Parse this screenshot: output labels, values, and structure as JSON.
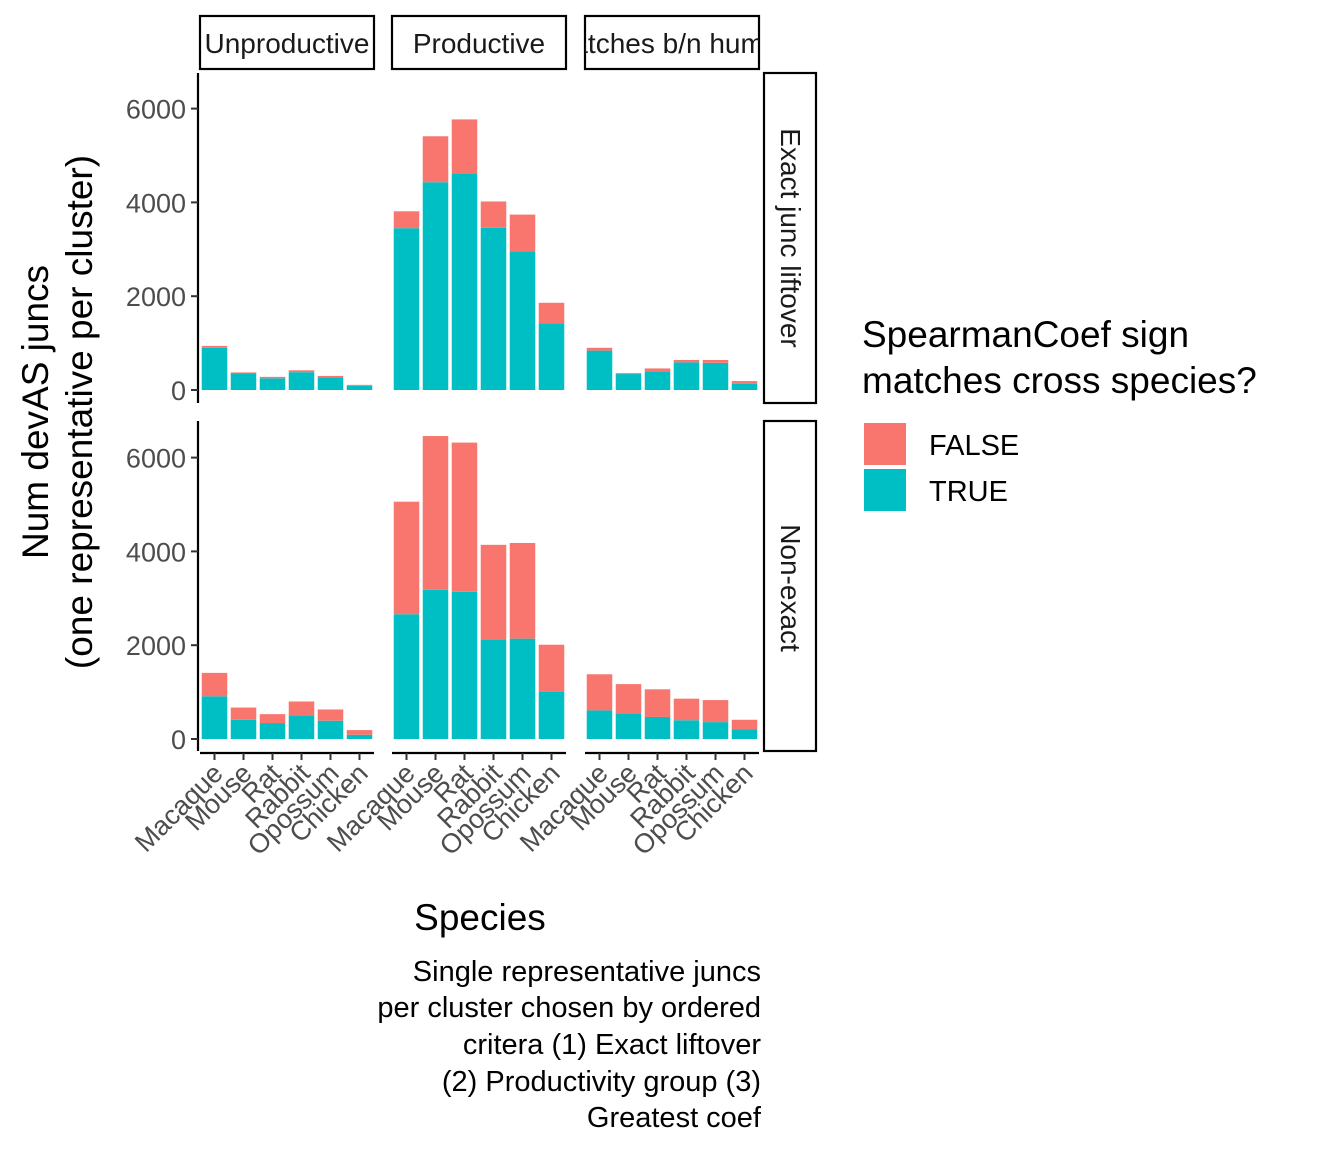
{
  "chart_data": {
    "type": "bar",
    "stacked": true,
    "facet_columns": [
      "Unproductive",
      "Productive",
      "Matches b/n human"
    ],
    "facet_rows": [
      "Exact junc liftover",
      "Non-exact"
    ],
    "categories": [
      "Macaque",
      "Mouse",
      "Rat",
      "Rabbit",
      "Opossum",
      "Chicken"
    ],
    "ylabel_line1": "Num devAS juncs",
    "ylabel_line2": "(one representative per cluster)",
    "xlabel": "Species",
    "ylim": [
      0,
      6700
    ],
    "yticks": [
      "0",
      "2000",
      "4000",
      "6000"
    ],
    "grid": false,
    "legend": {
      "title_line1": "SpearmanCoef sign",
      "title_line2": "matches cross species?",
      "position": "right",
      "items": [
        {
          "label": "FALSE",
          "color": "#F8766D"
        },
        {
          "label": "TRUE",
          "color": "#00BFC4"
        }
      ]
    },
    "caption_lines": [
      "Single representative juncs",
      "per cluster chosen by ordered",
      "critera (1) Exact liftover",
      "(2) Productivity group (3)",
      "Greatest coef"
    ],
    "panels": [
      {
        "row": 0,
        "col": 0,
        "true": [
          900,
          360,
          250,
          380,
          270,
          90
        ],
        "false": [
          40,
          15,
          30,
          40,
          30,
          20
        ]
      },
      {
        "row": 0,
        "col": 1,
        "true": [
          3450,
          4430,
          4620,
          3460,
          2960,
          1420
        ],
        "false": [
          360,
          980,
          1150,
          560,
          780,
          440
        ]
      },
      {
        "row": 0,
        "col": 2,
        "true": [
          840,
          340,
          400,
          590,
          580,
          130
        ],
        "false": [
          60,
          20,
          60,
          50,
          60,
          60
        ]
      },
      {
        "row": 1,
        "col": 0,
        "true": [
          910,
          410,
          340,
          490,
          390,
          90
        ],
        "false": [
          500,
          260,
          190,
          310,
          240,
          100
        ]
      },
      {
        "row": 1,
        "col": 1,
        "true": [
          2660,
          3180,
          3140,
          2120,
          2140,
          1010
        ],
        "false": [
          2400,
          3280,
          3180,
          2020,
          2040,
          1000
        ]
      },
      {
        "row": 1,
        "col": 2,
        "true": [
          610,
          550,
          470,
          400,
          360,
          210
        ],
        "false": [
          770,
          620,
          590,
          460,
          470,
          200
        ]
      }
    ]
  }
}
